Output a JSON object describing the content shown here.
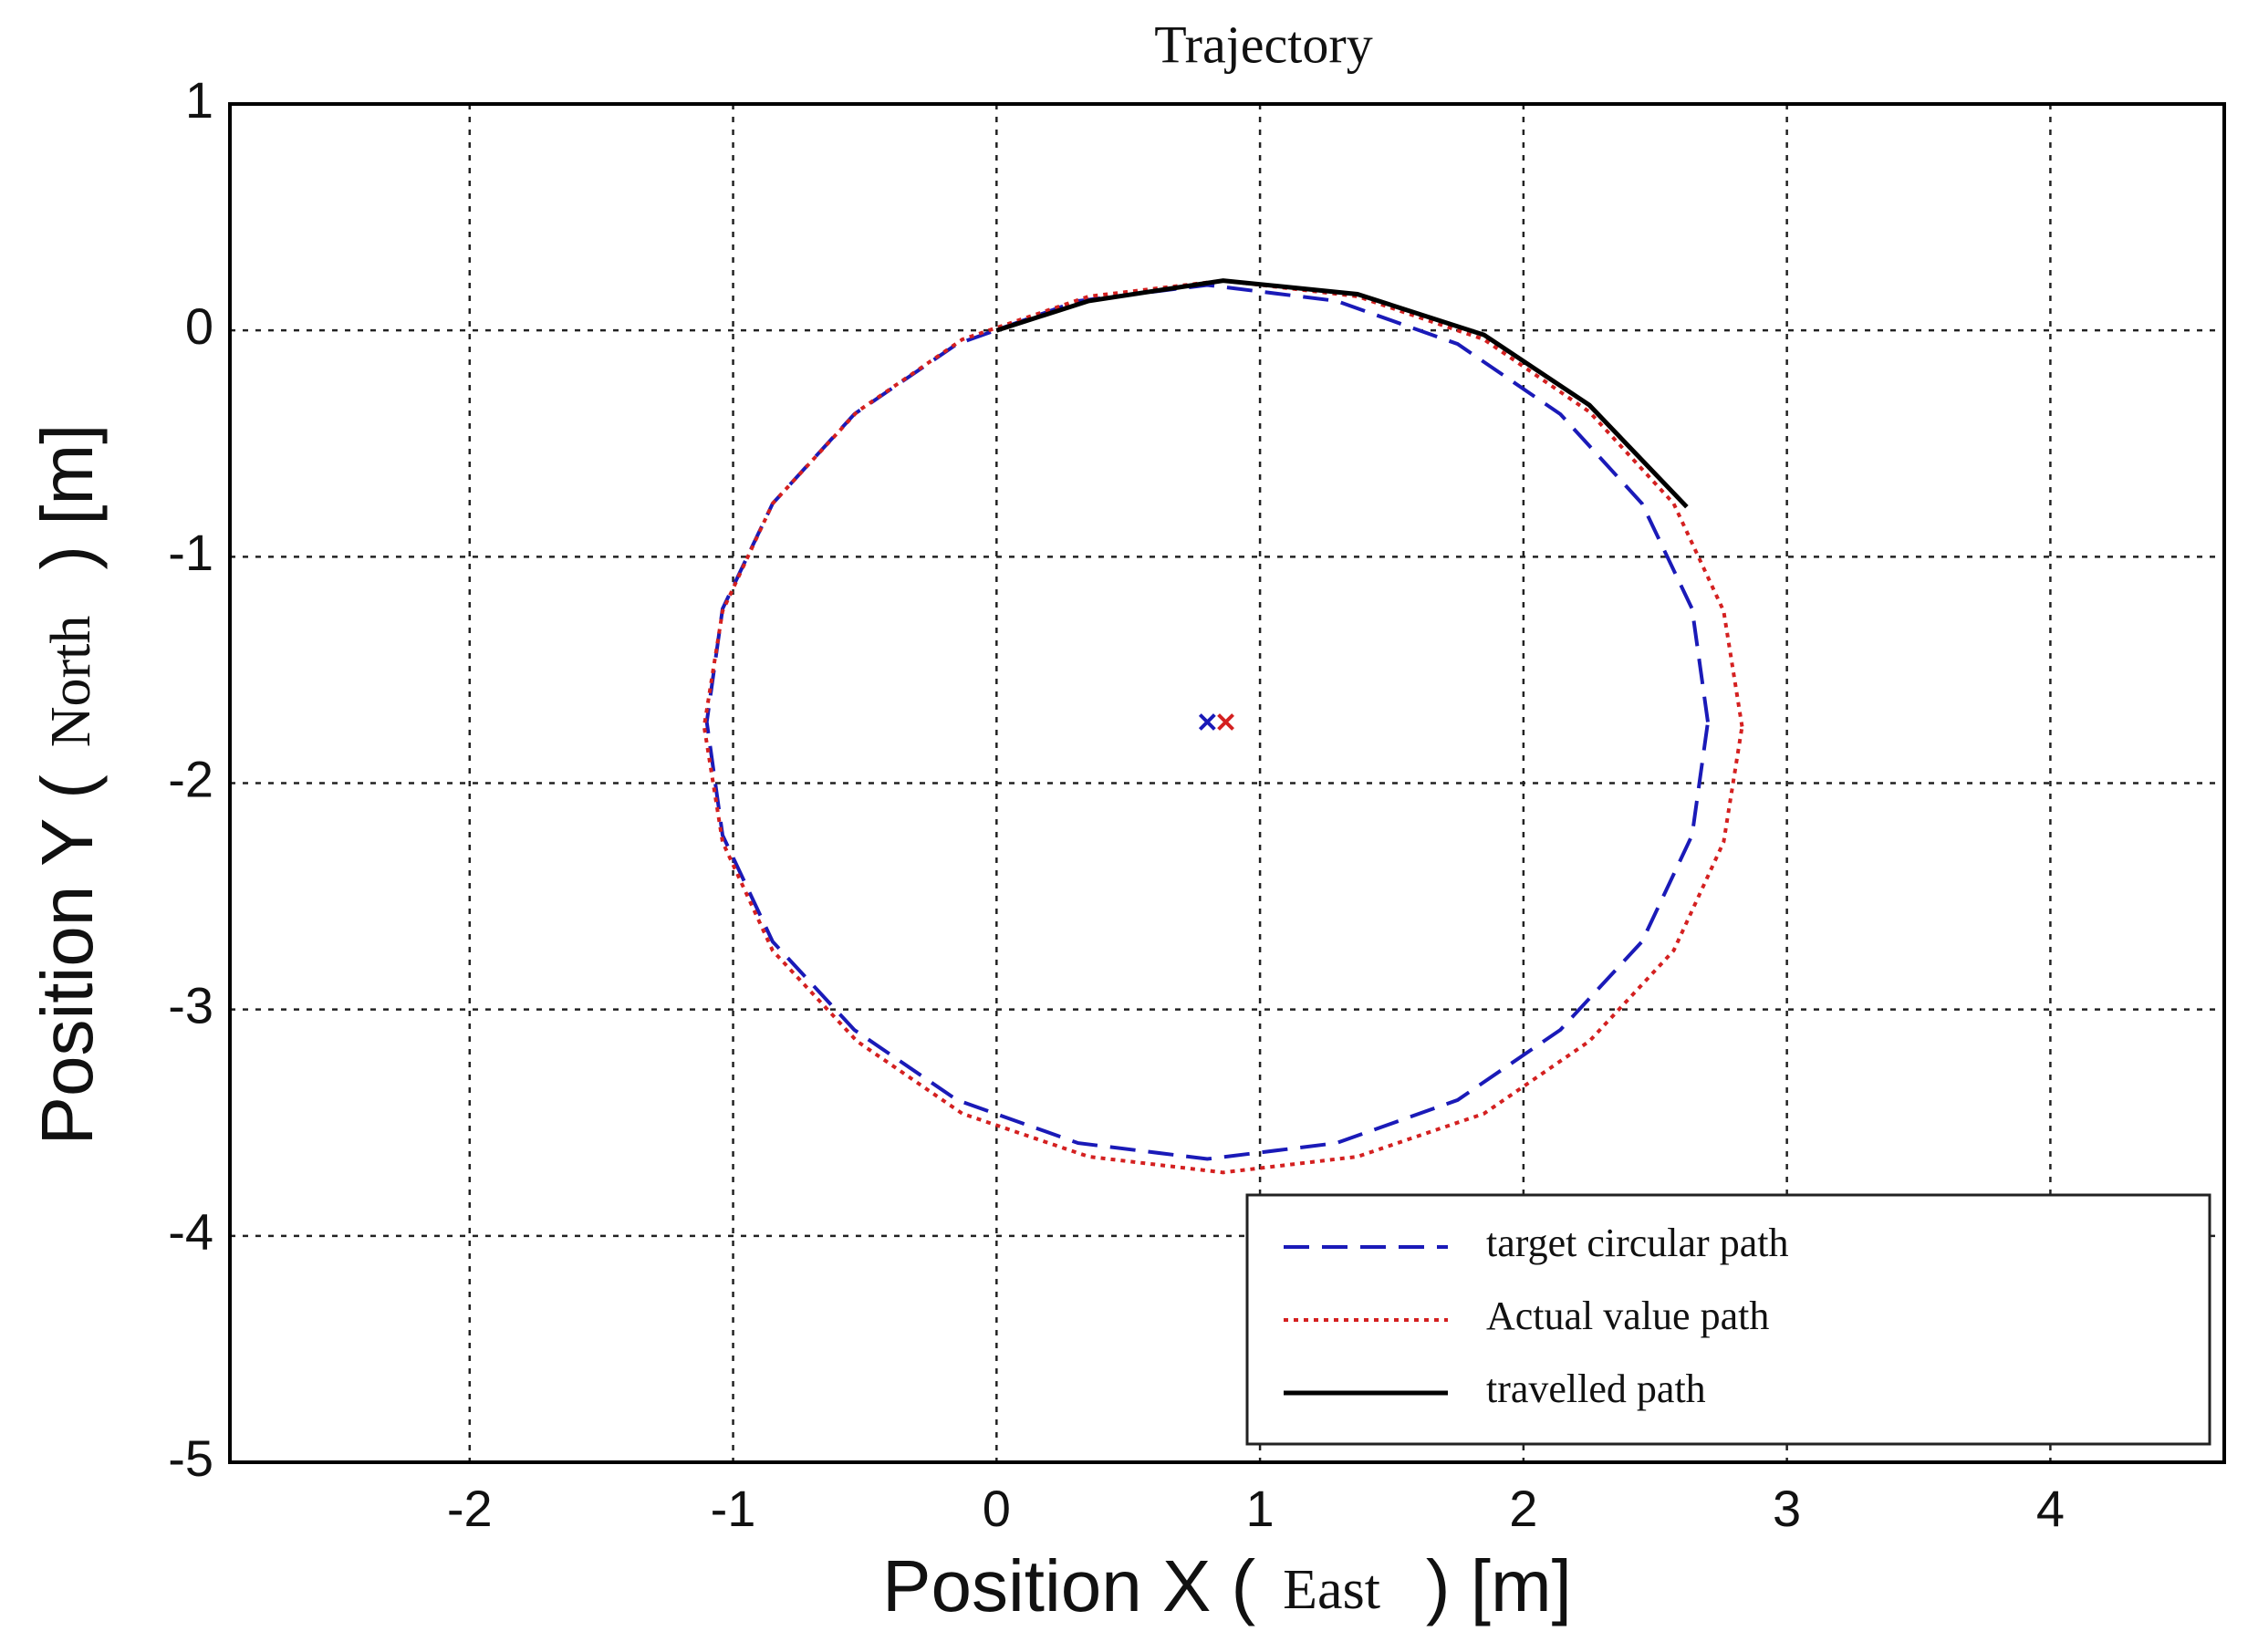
{
  "chart_data": {
    "type": "line",
    "title": "Trajectory",
    "x_label": [
      "Position X (",
      "East",
      ") [m]"
    ],
    "y_label": [
      "Position Y (",
      "North",
      ") [m]"
    ],
    "xlim": [
      -2.91,
      4.66
    ],
    "ylim": [
      -5,
      1
    ],
    "xticks": [
      -2,
      -1,
      0,
      1,
      2,
      3,
      4
    ],
    "yticks": [
      -5,
      -4,
      -3,
      -2,
      -1,
      0,
      1
    ],
    "grid": true,
    "legend": "lower right",
    "series": [
      {
        "name": "target circular path",
        "color": "#1a1ab8",
        "style": "dashed",
        "x": [
          2.7,
          2.64,
          2.45,
          2.14,
          1.75,
          1.29,
          0.8,
          0.31,
          -0.15,
          -0.54,
          -0.85,
          -1.04,
          -1.1,
          -1.04,
          -0.85,
          -0.54,
          -0.15,
          0.31,
          0.8,
          1.29,
          1.75,
          2.14,
          2.45,
          2.64,
          2.7
        ],
        "values": [
          -1.73,
          -1.23,
          -0.765,
          -0.37,
          -0.06,
          0.13,
          0.2,
          0.13,
          -0.06,
          -0.37,
          -0.765,
          -1.23,
          -1.73,
          -2.23,
          -2.7,
          -3.09,
          -3.4,
          -3.59,
          -3.66,
          -3.59,
          -3.4,
          -3.09,
          -2.7,
          -2.23,
          -1.73
        ]
      },
      {
        "name": "Actual value path",
        "color": "#d42020",
        "style": "dotted",
        "x": [
          2.83,
          2.76,
          2.57,
          2.25,
          1.85,
          1.37,
          0.86,
          0.35,
          -0.13,
          -0.53,
          -0.85,
          -1.04,
          -1.11,
          -1.04,
          -0.85,
          -0.53,
          -0.13,
          0.35,
          0.86,
          1.37,
          1.85,
          2.25,
          2.57,
          2.76,
          2.83
        ],
        "values": [
          -1.75,
          -1.24,
          -0.765,
          -0.36,
          -0.04,
          0.15,
          0.22,
          0.15,
          -0.04,
          -0.36,
          -0.765,
          -1.24,
          -1.75,
          -2.26,
          -2.74,
          -3.14,
          -3.46,
          -3.65,
          -3.72,
          -3.65,
          -3.46,
          -3.14,
          -2.74,
          -2.26,
          -1.75
        ]
      },
      {
        "name": "travelled path",
        "color": "#000000",
        "style": "solid",
        "x": [
          0,
          0.35,
          0.86,
          1.37,
          1.85,
          2.25,
          2.62
        ],
        "values": [
          0,
          0.13,
          0.22,
          0.16,
          -0.02,
          -0.33,
          -0.78
        ]
      }
    ],
    "center_marks": {
      "x": [
        0.8,
        0.87
      ],
      "values": [
        -1.73,
        -1.73
      ],
      "colors": [
        "#1a1ab8",
        "#d42020"
      ]
    }
  }
}
